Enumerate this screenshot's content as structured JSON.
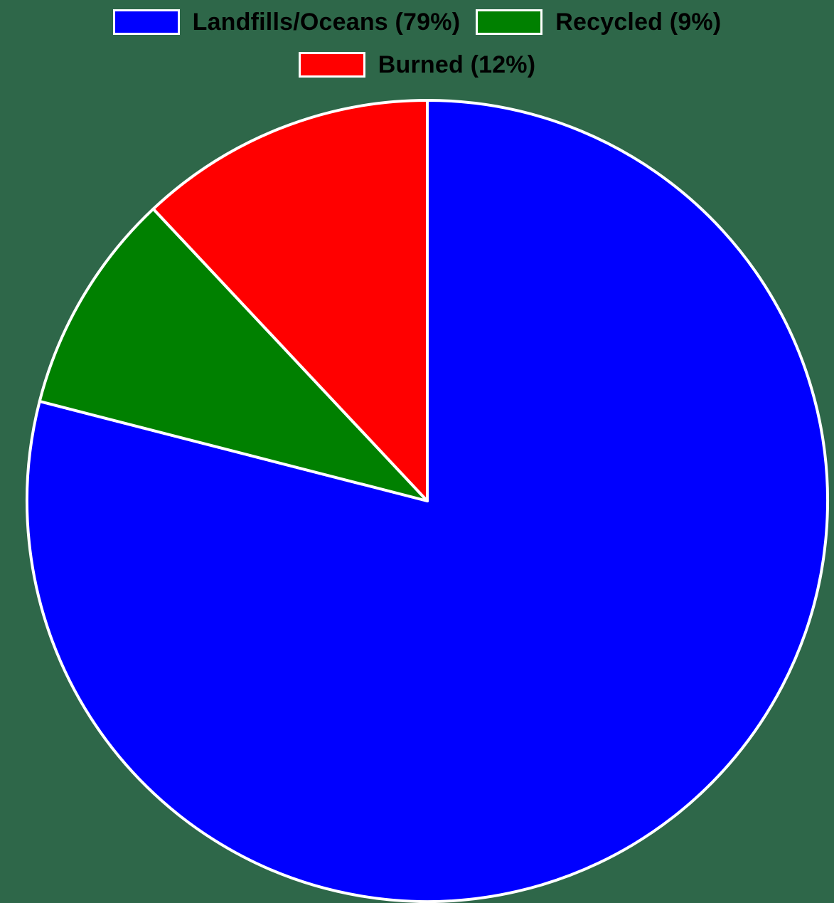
{
  "chart_data": {
    "type": "pie",
    "title": "",
    "categories": [
      "Landfills/Oceans (79%)",
      "Recycled (9%)",
      "Burned (12%)"
    ],
    "values": [
      79,
      9,
      12
    ],
    "colors": [
      "#0000ff",
      "#008000",
      "#ff0000"
    ],
    "slice_border_color": "#ffffff",
    "start_angle": "top (12 o'clock), clockwise",
    "legend_position": "top-center"
  },
  "background_color": "#2e6749",
  "legend": {
    "items": [
      {
        "label": "Landfills/Oceans (79%)",
        "color": "#0000ff"
      },
      {
        "label": "Recycled (9%)",
        "color": "#008000"
      },
      {
        "label": "Burned (12%)",
        "color": "#ff0000"
      }
    ]
  }
}
